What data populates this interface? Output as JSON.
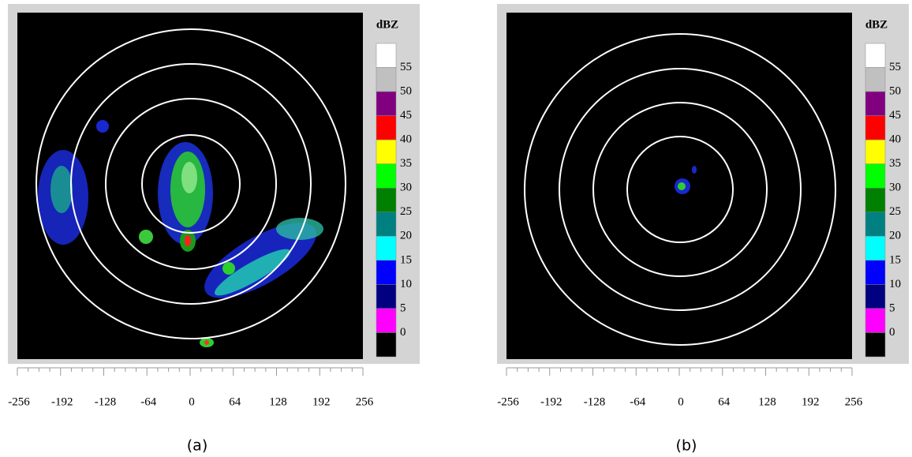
{
  "panels": [
    {
      "caption": "(a)",
      "colorbar": {
        "title": "dBZ",
        "labels": [
          "55",
          "50",
          "45",
          "40",
          "35",
          "30",
          "25",
          "20",
          "15",
          "10",
          "5",
          "0"
        ]
      },
      "axis": {
        "labels": [
          "-256",
          "-192",
          "-128",
          "-64",
          "0",
          "64",
          "128",
          "192",
          "256"
        ]
      }
    },
    {
      "caption": "(b)",
      "colorbar": {
        "title": "dBZ",
        "labels": [
          "55",
          "50",
          "45",
          "40",
          "35",
          "30",
          "25",
          "20",
          "15",
          "10",
          "5",
          "0"
        ]
      },
      "axis": {
        "labels": [
          "-256",
          "-192",
          "-128",
          "-64",
          "0",
          "64",
          "128",
          "192",
          "256"
        ]
      }
    }
  ]
}
